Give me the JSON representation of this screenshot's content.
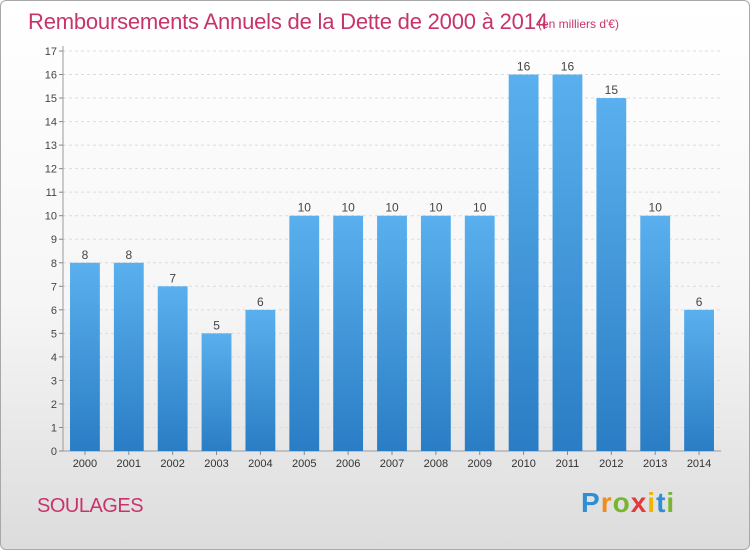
{
  "title": "Remboursements Annuels de la Dette de 2000 à 2014",
  "unit_note": "(en milliers d'€)",
  "commune": "SOULAGES",
  "brand": {
    "letters": [
      "P",
      "r",
      "o",
      "x",
      "i",
      "t",
      "i"
    ],
    "colors": [
      "#2e8fd6",
      "#f08c1e",
      "#7ab52f",
      "#e23b3b",
      "#f0b400",
      "#2e8fd6",
      "#7ab52f"
    ]
  },
  "chart_data": {
    "type": "bar",
    "categories": [
      "2000",
      "2001",
      "2002",
      "2003",
      "2004",
      "2005",
      "2006",
      "2007",
      "2008",
      "2009",
      "2010",
      "2011",
      "2012",
      "2013",
      "2014"
    ],
    "values": [
      8,
      8,
      7,
      5,
      6,
      10,
      10,
      10,
      10,
      10,
      16,
      16,
      15,
      10,
      6
    ],
    "ylim": [
      0,
      17
    ],
    "yticks": [
      0,
      1,
      2,
      3,
      4,
      5,
      6,
      7,
      8,
      9,
      10,
      11,
      12,
      13,
      14,
      15,
      16,
      17
    ],
    "grid": true,
    "bar_color": "#4ea4e6"
  }
}
